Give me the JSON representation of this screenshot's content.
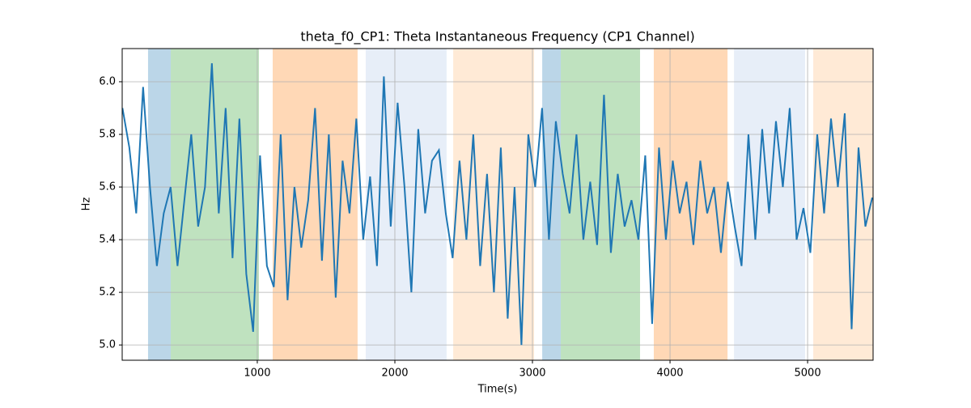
{
  "chart_data": {
    "type": "line",
    "title": "theta_f0_CP1: Theta Instantaneous Frequency (CP1 Channel)",
    "xlabel": "Time(s)",
    "ylabel": "Hz",
    "xlim": [
      18,
      5476
    ],
    "ylim": [
      4.942,
      6.126
    ],
    "xticks": [
      1000,
      2000,
      3000,
      4000,
      5000
    ],
    "yticks": [
      {
        "value": 5,
        "label": "5.0"
      },
      5.2,
      5.4,
      5.6,
      5.8,
      {
        "value": 6,
        "label": "6.0"
      }
    ],
    "grid": true,
    "spans": [
      {
        "start": 206,
        "end": 371,
        "color": "#1f77b4",
        "opacity": 0.3
      },
      {
        "start": 371,
        "end": 1012,
        "color": "#2ca02c",
        "opacity": 0.3
      },
      {
        "start": 1112,
        "end": 1729,
        "color": "#ff7f0e",
        "opacity": 0.3
      },
      {
        "start": 1788,
        "end": 2376,
        "color": "#aec7e8",
        "opacity": 0.3
      },
      {
        "start": 2424,
        "end": 3012,
        "color": "#ffbb78",
        "opacity": 0.3
      },
      {
        "start": 3071,
        "end": 3206,
        "color": "#1f77b4",
        "opacity": 0.3
      },
      {
        "start": 3206,
        "end": 3782,
        "color": "#2ca02c",
        "opacity": 0.3
      },
      {
        "start": 3882,
        "end": 4418,
        "color": "#ff7f0e",
        "opacity": 0.3
      },
      {
        "start": 4465,
        "end": 4982,
        "color": "#aec7e8",
        "opacity": 0.3
      },
      {
        "start": 5041,
        "end": 5476,
        "color": "#ffbb78",
        "opacity": 0.3
      }
    ],
    "x": [
      20,
      70,
      120,
      170,
      220,
      270,
      320,
      370,
      420,
      470,
      520,
      570,
      620,
      670,
      720,
      770,
      820,
      870,
      920,
      970,
      1020,
      1070,
      1120,
      1170,
      1220,
      1270,
      1320,
      1370,
      1420,
      1470,
      1520,
      1570,
      1620,
      1670,
      1720,
      1770,
      1820,
      1870,
      1920,
      1970,
      2020,
      2070,
      2120,
      2170,
      2220,
      2270,
      2320,
      2370,
      2420,
      2470,
      2520,
      2570,
      2620,
      2670,
      2720,
      2770,
      2820,
      2870,
      2920,
      2970,
      3020,
      3070,
      3120,
      3170,
      3220,
      3270,
      3320,
      3370,
      3420,
      3470,
      3520,
      3570,
      3620,
      3670,
      3720,
      3770,
      3820,
      3870,
      3920,
      3970,
      4020,
      4070,
      4120,
      4170,
      4220,
      4270,
      4320,
      4370,
      4420,
      4470,
      4520,
      4570,
      4620,
      4670,
      4720,
      4770,
      4820,
      4870,
      4920,
      4970,
      5020,
      5070,
      5120,
      5170,
      5220,
      5270,
      5320,
      5370,
      5420,
      5470
    ],
    "series": [
      {
        "color": "#1f77b4",
        "values": [
          5.9,
          5.75,
          5.5,
          5.98,
          5.6,
          5.3,
          5.5,
          5.6,
          5.3,
          5.55,
          5.8,
          5.45,
          5.6,
          6.07,
          5.5,
          5.9,
          5.33,
          5.86,
          5.27,
          5.05,
          5.72,
          5.3,
          5.22,
          5.8,
          5.17,
          5.6,
          5.37,
          5.55,
          5.9,
          5.32,
          5.8,
          5.18,
          5.7,
          5.5,
          5.86,
          5.4,
          5.64,
          5.3,
          6.02,
          5.45,
          5.92,
          5.6,
          5.2,
          5.82,
          5.5,
          5.7,
          5.74,
          5.5,
          5.33,
          5.7,
          5.4,
          5.8,
          5.3,
          5.65,
          5.2,
          5.75,
          5.1,
          5.6,
          5.0,
          5.8,
          5.6,
          5.9,
          5.4,
          5.85,
          5.65,
          5.5,
          5.8,
          5.4,
          5.62,
          5.38,
          5.95,
          5.35,
          5.65,
          5.45,
          5.55,
          5.4,
          5.72,
          5.08,
          5.75,
          5.4,
          5.7,
          5.5,
          5.62,
          5.38,
          5.7,
          5.5,
          5.6,
          5.35,
          5.62,
          5.45,
          5.3,
          5.8,
          5.4,
          5.82,
          5.5,
          5.85,
          5.6,
          5.9,
          5.4,
          5.52,
          5.35,
          5.8,
          5.5,
          5.86,
          5.6,
          5.88,
          5.06,
          5.75,
          5.45,
          5.56
        ]
      }
    ]
  }
}
